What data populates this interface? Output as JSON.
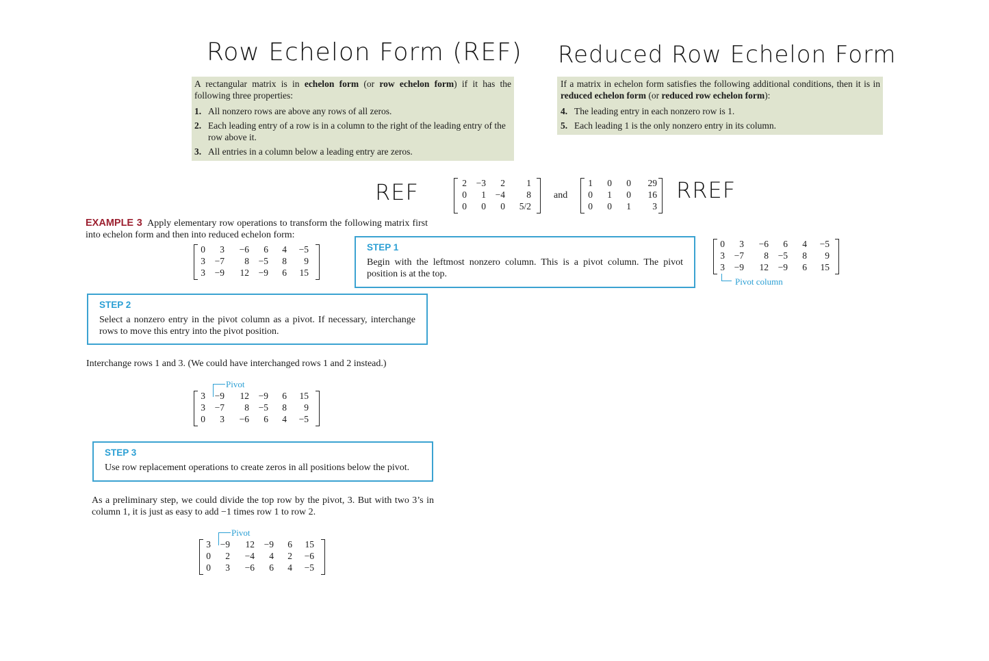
{
  "titles": {
    "ref_title": "Row Echelon Form (REF)",
    "rref_title": "Reduced Row Echelon Form"
  },
  "ref_box": {
    "intro_pre": "A rectangular matrix is in ",
    "intro_b1": "echelon form",
    "intro_mid": " (or ",
    "intro_b2": "row echelon form",
    "intro_post": ") if it has the following three properties:",
    "items": [
      {
        "num": "1.",
        "text": "All nonzero rows are above any rows of all zeros."
      },
      {
        "num": "2.",
        "text": "Each leading entry of a row is in a column to the right of the leading entry of the row above it."
      },
      {
        "num": "3.",
        "text": "All entries in a column below a leading entry are zeros."
      }
    ]
  },
  "rref_box": {
    "intro_pre": "If a matrix in echelon form satisfies the following additional conditions, then it is in ",
    "intro_b1": "reduced echelon form",
    "intro_mid": " (or ",
    "intro_b2": "reduced row echelon form",
    "intro_post": "):",
    "items": [
      {
        "num": "4.",
        "text": "The leading entry in each nonzero row is 1."
      },
      {
        "num": "5.",
        "text": "Each leading 1 is the only nonzero entry in its column."
      }
    ]
  },
  "compare": {
    "ref_label": "REF",
    "and_label": "and",
    "rref_label": "RREF",
    "ref_matrix": [
      [
        "2",
        "−3",
        "2",
        "1"
      ],
      [
        "0",
        "1",
        "−4",
        "8"
      ],
      [
        "0",
        "0",
        "0",
        "5/2"
      ]
    ],
    "rref_matrix": [
      [
        "1",
        "0",
        "0",
        "29"
      ],
      [
        "0",
        "1",
        "0",
        "16"
      ],
      [
        "0",
        "0",
        "1",
        "3"
      ]
    ]
  },
  "example": {
    "label": "EXAMPLE 3",
    "text": "Apply elementary row operations to transform the following matrix first into echelon form and then into reduced echelon form:",
    "matrix": [
      [
        "0",
        "3",
        "−6",
        "6",
        "4",
        "−5"
      ],
      [
        "3",
        "−7",
        "8",
        "−5",
        "8",
        "9"
      ],
      [
        "3",
        "−9",
        "12",
        "−9",
        "6",
        "15"
      ]
    ]
  },
  "step1": {
    "head": "STEP 1",
    "body": "Begin with the leftmost nonzero column. This is a pivot column. The pivot position is at the top.",
    "matrix": [
      [
        "0",
        "3",
        "−6",
        "6",
        "4",
        "−5"
      ],
      [
        "3",
        "−7",
        "8",
        "−5",
        "8",
        "9"
      ],
      [
        "3",
        "−9",
        "12",
        "−9",
        "6",
        "15"
      ]
    ],
    "label": "Pivot column"
  },
  "step2": {
    "head": "STEP 2",
    "body": "Select a nonzero entry in the pivot column as a pivot. If necessary, interchange rows to move this entry into the pivot position."
  },
  "interchange_text": "Interchange rows 1 and 3. (We could have interchanged rows 1 and 2 instead.)",
  "matrix_after_swap": {
    "pivot_label": "Pivot",
    "rows": [
      [
        "3",
        "−9",
        "12",
        "−9",
        "6",
        "15"
      ],
      [
        "3",
        "−7",
        "8",
        "−5",
        "8",
        "9"
      ],
      [
        "0",
        "3",
        "−6",
        "6",
        "4",
        "−5"
      ]
    ]
  },
  "step3": {
    "head": "STEP 3",
    "body": "Use row replacement operations to create zeros in all positions below the pivot."
  },
  "prelim_text": "As a preliminary step, we could divide the top row by the pivot, 3. But with two 3’s in column 1, it is just as easy to add −1 times row 1 to row 2.",
  "matrix_after_replace": {
    "pivot_label": "Pivot",
    "rows": [
      [
        "3",
        "−9",
        "12",
        "−9",
        "6",
        "15"
      ],
      [
        "0",
        "2",
        "−4",
        "4",
        "2",
        "−6"
      ],
      [
        "0",
        "3",
        "−6",
        "6",
        "4",
        "−5"
      ]
    ]
  }
}
